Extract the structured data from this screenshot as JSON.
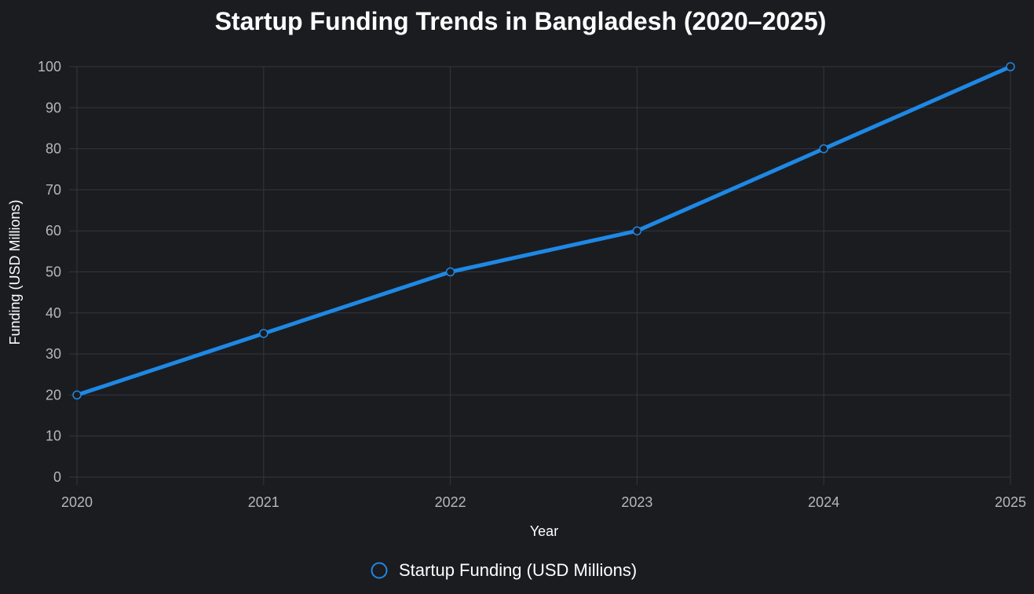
{
  "chart_data": {
    "type": "line",
    "title": "Startup Funding Trends in Bangladesh (2020–2025)",
    "xlabel": "Year",
    "ylabel": "Funding (USD Millions)",
    "categories": [
      "2020",
      "2021",
      "2022",
      "2023",
      "2024",
      "2025"
    ],
    "y_ticks": [
      "0",
      "10",
      "20",
      "30",
      "40",
      "50",
      "60",
      "70",
      "80",
      "90",
      "100"
    ],
    "ylim": [
      0,
      100
    ],
    "grid": true,
    "legend_position": "bottom",
    "series": [
      {
        "name": "Startup Funding (USD Millions)",
        "values": [
          20,
          35,
          50,
          60,
          80,
          100
        ],
        "color": "#1e88e5"
      }
    ]
  },
  "colors": {
    "background": "#1b1c20",
    "grid": "#34363c",
    "tick_text": "#b5b7bd",
    "title_text": "#ffffff"
  }
}
